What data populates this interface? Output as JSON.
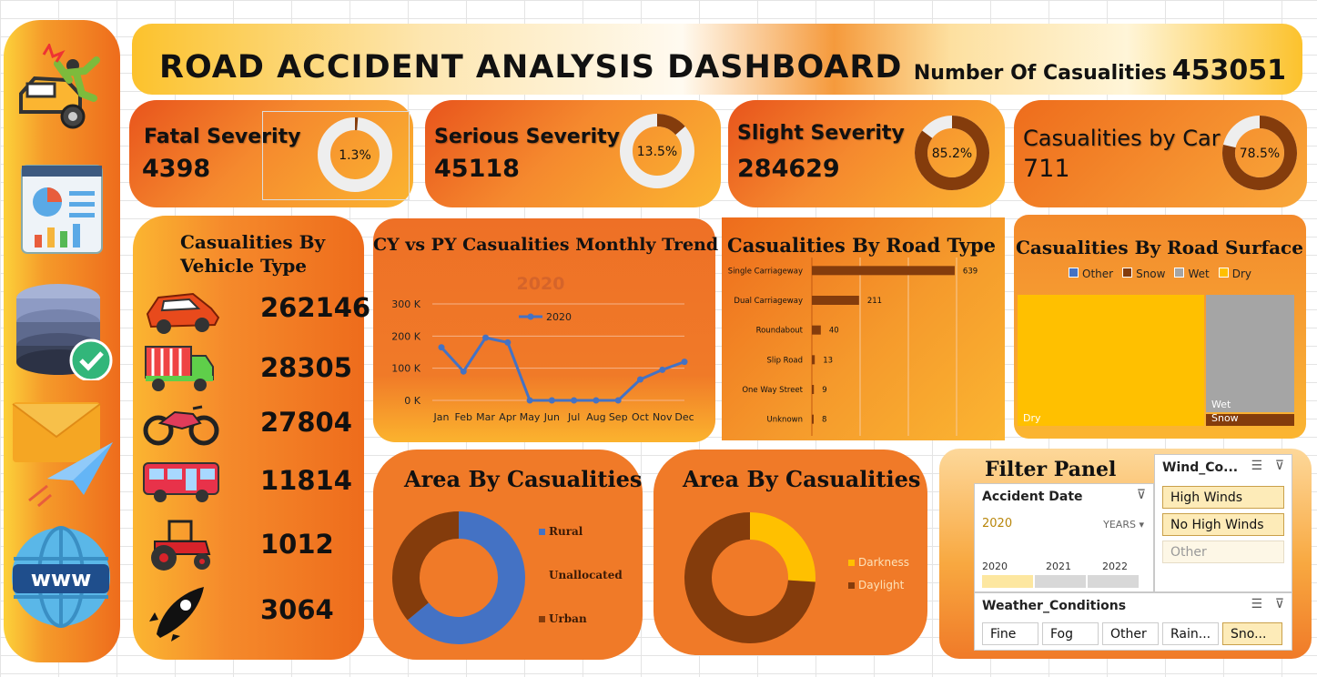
{
  "header": {
    "title": "ROAD ACCIDENT ANALYSIS DASHBOARD",
    "total_label": "Number Of Casualities",
    "total_value": "453051"
  },
  "sidebar": {
    "icons": [
      "car-crash-icon",
      "dashboard-icon",
      "database-check-icon",
      "send-mail-icon",
      "www-globe-icon"
    ]
  },
  "kpis": [
    {
      "label": "Fatal Severity",
      "value": "4398",
      "percent_label": "1.3%",
      "percent": 1.3
    },
    {
      "label": "Serious Severity",
      "value": "45118",
      "percent_label": "13.5%",
      "percent": 13.5
    },
    {
      "label": "Slight Severity",
      "value": "284629",
      "percent_label": "85.2%",
      "percent": 85.2
    },
    {
      "label": "Casualities by Car",
      "value": "711",
      "percent_label": "78.5%",
      "percent": 78.5
    }
  ],
  "vehicle": {
    "title_line1": "Casualities By",
    "title_line2": "Vehicle Type",
    "rows": [
      {
        "icon": "car-icon",
        "value": "262146"
      },
      {
        "icon": "truck-icon",
        "value": "28305"
      },
      {
        "icon": "motorcycle-icon",
        "value": "27804"
      },
      {
        "icon": "bus-icon",
        "value": "11814"
      },
      {
        "icon": "tractor-icon",
        "value": "1012"
      },
      {
        "icon": "rocket-icon",
        "value": "3064"
      }
    ]
  },
  "colors": {
    "brown": "#843c0c",
    "yellow": "#ffc000",
    "blue": "#4472c4",
    "grey": "#a5a5a5",
    "orange": "#ee6c1c"
  },
  "chart_data": [
    {
      "type": "line",
      "title": "CY vs PY Casualities Monthly Trend",
      "subtitle": "2020",
      "categories": [
        "Jan",
        "Feb",
        "Mar",
        "Apr",
        "May",
        "Jun",
        "Jul",
        "Aug",
        "Sep",
        "Oct",
        "Nov",
        "Dec"
      ],
      "series": [
        {
          "name": "2020",
          "values": [
            165000,
            90000,
            195000,
            180000,
            0,
            0,
            0,
            0,
            0,
            65000,
            95000,
            120000
          ]
        }
      ],
      "ylim": [
        0,
        300000
      ],
      "yticks": [
        "0 K",
        "100 K",
        "200 K",
        "300 K"
      ],
      "legend": "top",
      "grid": true
    },
    {
      "type": "bar",
      "title": "Casualities By Road Type",
      "categories": [
        "Single Carriageway",
        "Dual Carriageway",
        "Roundabout",
        "Slip Road",
        "One Way Street",
        "Unknown"
      ],
      "values": [
        639,
        211,
        40,
        13,
        9,
        8
      ],
      "orientation": "horizontal",
      "grid": true
    },
    {
      "type": "heatmap",
      "title": "Casualities By Road Surface",
      "legend": [
        "Other",
        "Snow",
        "Wet",
        "Dry"
      ],
      "legend_colors": [
        "#4472c4",
        "#843c0c",
        "#a5a5a5",
        "#ffc000"
      ],
      "labels": [
        "Dry",
        "Wet",
        "Snow"
      ],
      "shares": {
        "Dry": 0.68,
        "Wet": 0.29,
        "Snow": 0.03
      }
    },
    {
      "type": "pie",
      "title": "Area By Casualities",
      "categories": [
        "Rural",
        "Unallocated",
        "Urban"
      ],
      "values": [
        64,
        0,
        36
      ],
      "colors": [
        "#4472c4",
        "#f07a28",
        "#843c0c"
      ],
      "legend": "right"
    },
    {
      "type": "pie",
      "title": "Area By Casualities",
      "categories": [
        "Darkness",
        "Daylight"
      ],
      "values": [
        26,
        74
      ],
      "colors": [
        "#ffc000",
        "#843c0c"
      ],
      "legend": "right"
    }
  ],
  "filter": {
    "title": "Filter Panel",
    "date": {
      "label": "Accident Date",
      "selected": "2020",
      "period": "YEARS",
      "years": [
        "2020",
        "2021",
        "2022"
      ]
    },
    "wind": {
      "label": "Wind_Co...",
      "options": [
        "High Winds",
        "No High Winds",
        "Other"
      ]
    },
    "weather": {
      "label": "Weather_Conditions",
      "options": [
        "Fine",
        "Fog",
        "Other",
        "Rain...",
        "Sno..."
      ]
    }
  }
}
